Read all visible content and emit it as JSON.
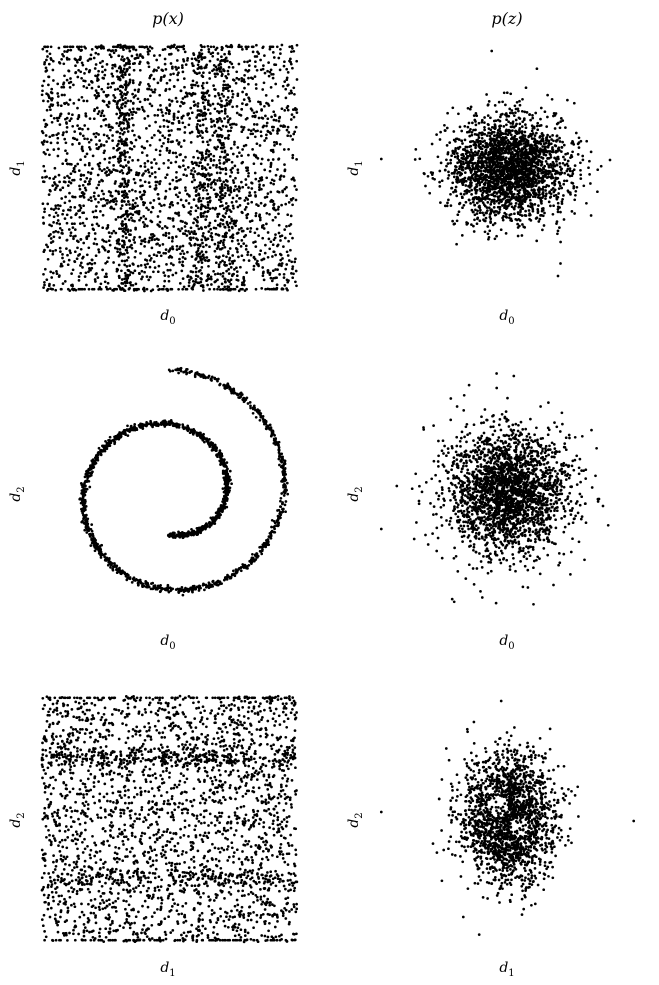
{
  "column_titles": [
    "p(x)",
    "p(z)"
  ],
  "chart_data": [
    {
      "type": "scatter",
      "panel": "x-d0-d1",
      "distribution": "p(x)",
      "xlabel": "d0",
      "ylabel": "d1",
      "xlim": [
        -1,
        1
      ],
      "ylim": [
        -1,
        1
      ],
      "grid": false,
      "point_color": "#000000",
      "pattern": "uniform square with vertical bands",
      "bands": [
        -0.35,
        0.25,
        0.42
      ],
      "n_points": 2400
    },
    {
      "type": "scatter",
      "panel": "z-d0-d1",
      "distribution": "p(z)",
      "xlabel": "d0",
      "ylabel": "d1",
      "xlim": [
        -4.2,
        4.2
      ],
      "ylim": [
        -4.2,
        4.2
      ],
      "grid": false,
      "point_color": "#000000",
      "pattern": "isotropic gaussian",
      "sigma_x": 0.95,
      "sigma_y": 0.85,
      "n_points": 2400,
      "outliers": [
        [
          -4.0,
          0.3
        ],
        [
          -2.6,
          -0.6
        ],
        [
          1.6,
          -3.6
        ],
        [
          -0.5,
          3.9
        ]
      ]
    },
    {
      "type": "scatter",
      "panel": "x-d0-d2",
      "distribution": "p(x)",
      "xlabel": "d0",
      "ylabel": "d2",
      "xlim": [
        -1,
        1
      ],
      "ylim": [
        -1,
        1
      ],
      "grid": false,
      "point_color": "#000000",
      "pattern": "swiss roll spiral",
      "theta_range": [
        1.5,
        4.5
      ],
      "noise": 0.012,
      "n_points": 1600
    },
    {
      "type": "scatter",
      "panel": "z-d0-d2",
      "distribution": "p(z)",
      "xlabel": "d0",
      "ylabel": "d2",
      "xlim": [
        -4.2,
        4.2
      ],
      "ylim": [
        -4.2,
        4.2
      ],
      "grid": false,
      "point_color": "#000000",
      "pattern": "isotropic gaussian",
      "sigma_x": 0.95,
      "sigma_y": 1.05,
      "n_points": 2400,
      "outliers": [
        [
          -4.0,
          -1.2
        ],
        [
          -2.6,
          -1.4
        ],
        [
          0.2,
          3.9
        ],
        [
          2.9,
          -0.2
        ]
      ]
    },
    {
      "type": "scatter",
      "panel": "x-d1-d2",
      "distribution": "p(x)",
      "xlabel": "d1",
      "ylabel": "d2",
      "xlim": [
        -1,
        1
      ],
      "ylim": [
        -1,
        1
      ],
      "grid": false,
      "point_color": "#000000",
      "pattern": "uniform square with horizontal bands",
      "bands": [
        0.5,
        -0.48
      ],
      "n_points": 2400
    },
    {
      "type": "scatter",
      "panel": "z-d1-d2",
      "distribution": "p(z)",
      "xlabel": "d1",
      "ylabel": "d2",
      "xlim": [
        -4.2,
        4.2
      ],
      "ylim": [
        -4.2,
        4.2
      ],
      "grid": false,
      "point_color": "#000000",
      "pattern": "gaussian with holes",
      "sigma_x": 0.75,
      "sigma_y": 1.05,
      "n_points": 2000,
      "outliers": [
        [
          -4.0,
          0.2
        ],
        [
          -1.4,
          -3.3
        ],
        [
          -0.2,
          3.9
        ],
        [
          4.0,
          -0.1
        ]
      ]
    }
  ]
}
